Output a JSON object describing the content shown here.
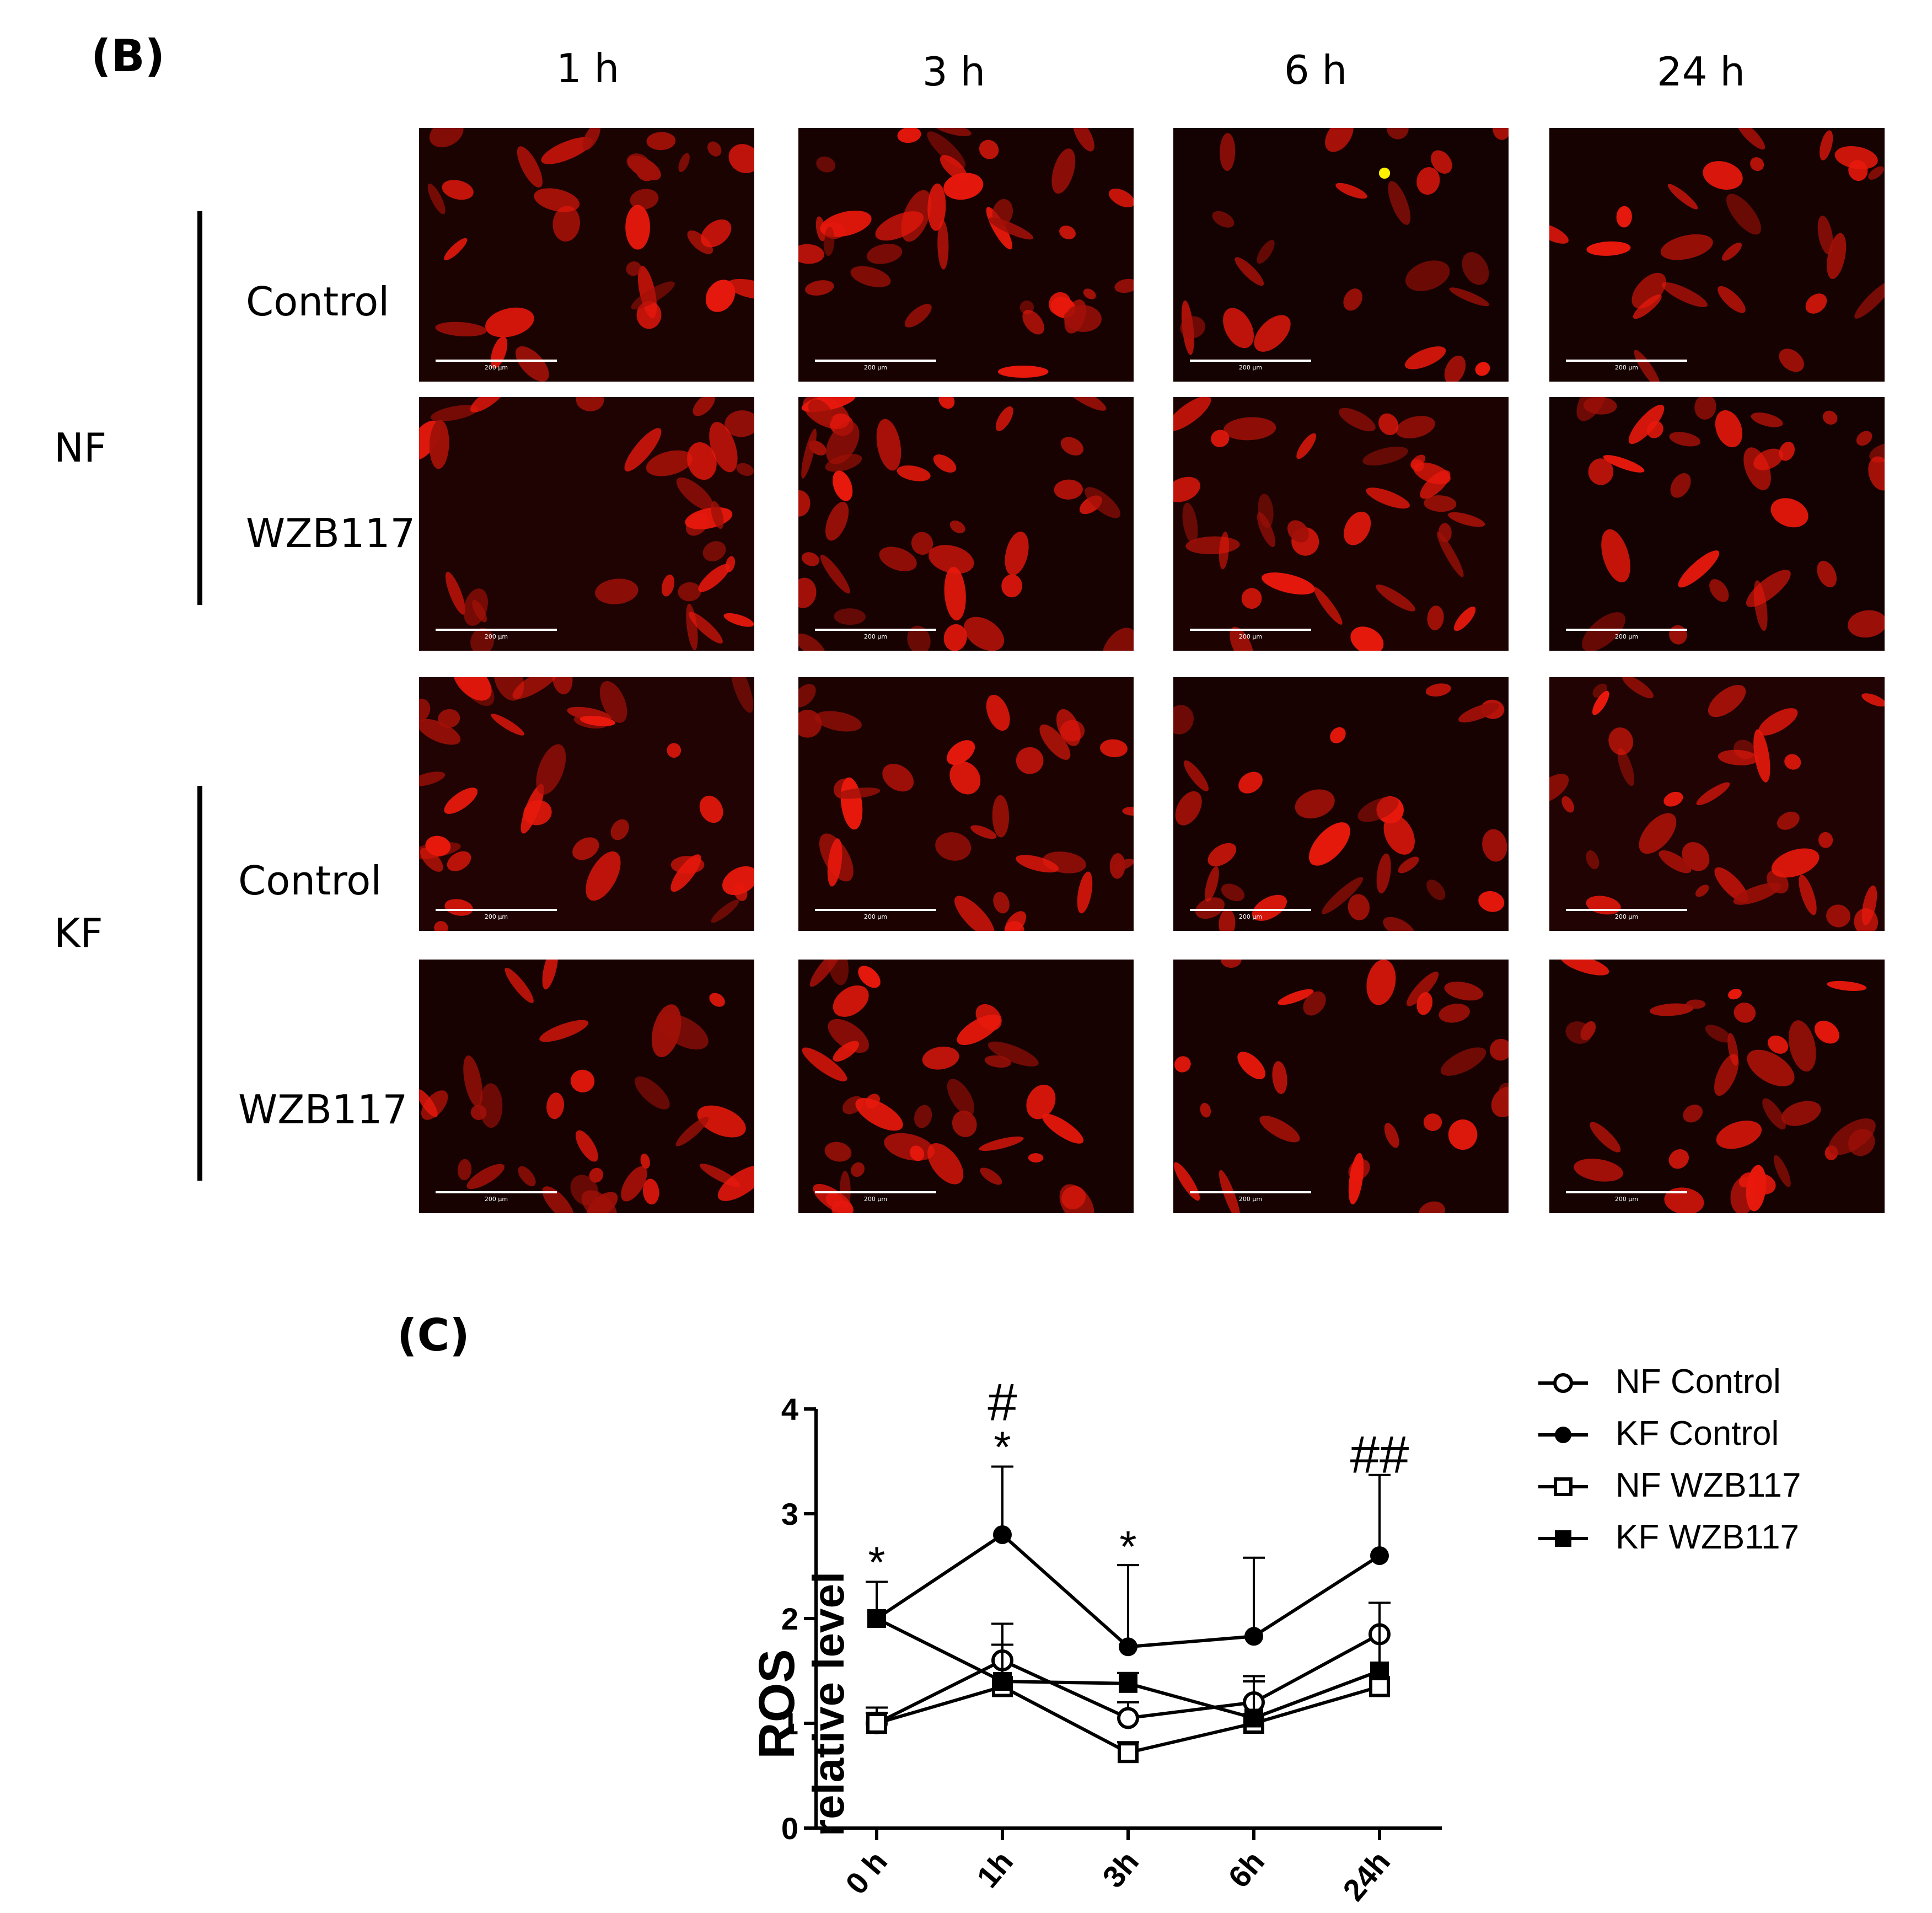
{
  "panel_b_label": "(B)",
  "panel_c_label": "(C)",
  "time_columns": [
    "1 h",
    "3 h",
    "6 h",
    "24 h"
  ],
  "groups": [
    {
      "label": "NF",
      "rows": [
        "Control",
        "WZB117"
      ]
    },
    {
      "label": "KF",
      "rows": [
        "Control",
        "WZB117"
      ]
    }
  ],
  "scale_bar_text": "200 μm",
  "image_colors": {
    "background": "#000000",
    "cell": "#e8180c",
    "dim_cell": "#a01008",
    "bright_spot": "#fff200"
  },
  "chart_data": {
    "type": "line",
    "x": [
      "0 h",
      "1h",
      "3h",
      "6h",
      "24h"
    ],
    "ylabel": "ROS\nrelative level",
    "ylabel_line1": "ROS",
    "ylabel_line2": "relative level",
    "ylim": [
      0,
      4
    ],
    "yticks": [
      0,
      1,
      2,
      3,
      4
    ],
    "series": [
      {
        "name": "NF Control",
        "marker": "open-circle",
        "values": [
          1.0,
          1.6,
          1.05,
          1.2,
          1.85
        ],
        "errors": [
          0.15,
          0.35,
          0.15,
          0.25,
          0.3
        ]
      },
      {
        "name": "KF Control",
        "marker": "filled-circle",
        "values": [
          2.0,
          2.8,
          1.73,
          1.83,
          2.6
        ],
        "errors": [
          0.35,
          0.65,
          0.78,
          0.75,
          0.77
        ]
      },
      {
        "name": "NF WZB117",
        "marker": "open-square",
        "values": [
          1.0,
          1.35,
          0.72,
          1.0,
          1.35
        ],
        "errors": [
          0.1,
          0.4,
          0.1,
          0.4,
          0.8
        ]
      },
      {
        "name": "KF WZB117",
        "marker": "filled-square",
        "values": [
          2.0,
          1.4,
          1.38,
          1.05,
          1.5
        ],
        "errors": [
          0.0,
          0.35,
          0.1,
          0.35,
          0.65
        ]
      }
    ],
    "annotations": [
      {
        "text": "*",
        "x": "0 h",
        "y": 2.55
      },
      {
        "text": "*",
        "x": "1h",
        "y": 3.65
      },
      {
        "text": "#",
        "x": "1h",
        "y": 4.05
      },
      {
        "text": "*",
        "x": "3h",
        "y": 2.7
      },
      {
        "text": "##",
        "x": "24h",
        "y": 3.55
      }
    ],
    "legend_position": "right"
  }
}
